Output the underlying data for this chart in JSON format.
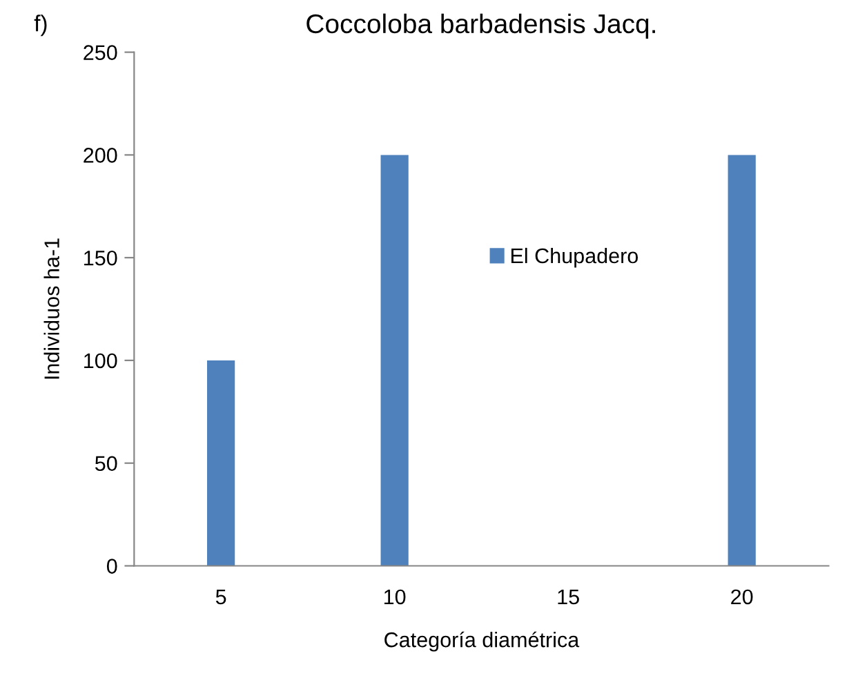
{
  "chart_data": {
    "type": "bar",
    "title": "Coccoloba barbadensis Jacq.",
    "xlabel": "Categoría diamétrica",
    "ylabel": "Individuos ha-1",
    "annotations": [
      "f)"
    ],
    "categories": [
      "5",
      "10",
      "15",
      "20"
    ],
    "series": [
      {
        "name": "El Chupadero",
        "color": "#4f81bd",
        "values": [
          100,
          200,
          0,
          200
        ]
      }
    ],
    "ylim": [
      0,
      250
    ],
    "yticks": [
      0,
      50,
      100,
      150,
      200,
      250
    ],
    "grid": false,
    "legend": "center"
  }
}
